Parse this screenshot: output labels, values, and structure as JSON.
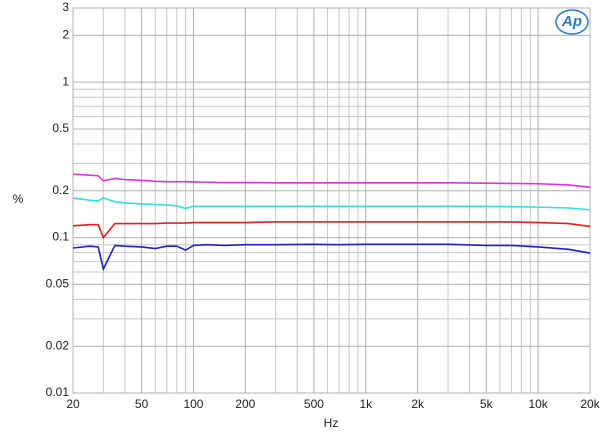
{
  "chart_data": {
    "type": "line",
    "logo": "Ap",
    "xlabel": "Hz",
    "ylabel": "%",
    "xscale": "log",
    "yscale": "log",
    "xlim": [
      20,
      20000
    ],
    "ylim": [
      0.01,
      3
    ],
    "xticks": [
      20,
      50,
      100,
      200,
      500,
      {
        "value": 1000,
        "label": "1k"
      },
      {
        "value": 2000,
        "label": "2k"
      },
      {
        "value": 5000,
        "label": "5k"
      },
      {
        "value": 10000,
        "label": "10k"
      },
      {
        "value": 20000,
        "label": "20k"
      }
    ],
    "yticks": [
      0.01,
      0.02,
      0.05,
      0.1,
      0.2,
      0.5,
      1,
      2,
      3
    ],
    "xgrid": [
      30,
      40,
      60,
      70,
      80,
      90,
      300,
      400,
      600,
      700,
      800,
      900,
      3000,
      4000,
      6000,
      7000,
      8000,
      9000
    ],
    "ygrid": [
      0.03,
      0.04,
      0.06,
      0.07,
      0.08,
      0.09,
      0.3,
      0.4,
      0.6,
      0.7,
      0.8,
      0.9
    ],
    "x": [
      20,
      25,
      28,
      30,
      35,
      40,
      50,
      60,
      70,
      80,
      90,
      100,
      120,
      150,
      200,
      300,
      500,
      700,
      1000,
      1500,
      2000,
      3000,
      5000,
      7000,
      10000,
      15000,
      20000
    ],
    "series": [
      {
        "name": "magenta",
        "color": "#e030e0",
        "values": [
          0.256,
          0.252,
          0.25,
          0.232,
          0.24,
          0.236,
          0.233,
          0.23,
          0.229,
          0.229,
          0.229,
          0.228,
          0.227,
          0.226,
          0.226,
          0.225,
          0.225,
          0.225,
          0.225,
          0.225,
          0.225,
          0.225,
          0.224,
          0.223,
          0.222,
          0.218,
          0.211
        ]
      },
      {
        "name": "cyan",
        "color": "#30e0e0",
        "values": [
          0.18,
          0.174,
          0.172,
          0.18,
          0.17,
          0.167,
          0.165,
          0.163,
          0.162,
          0.16,
          0.154,
          0.159,
          0.159,
          0.159,
          0.159,
          0.159,
          0.159,
          0.159,
          0.159,
          0.159,
          0.159,
          0.159,
          0.159,
          0.158,
          0.157,
          0.155,
          0.151
        ]
      },
      {
        "name": "red",
        "color": "#e02020",
        "values": [
          0.119,
          0.121,
          0.121,
          0.1,
          0.123,
          0.123,
          0.123,
          0.123,
          0.124,
          0.124,
          0.124,
          0.125,
          0.125,
          0.125,
          0.125,
          0.126,
          0.126,
          0.126,
          0.126,
          0.126,
          0.126,
          0.126,
          0.126,
          0.126,
          0.125,
          0.123,
          0.118
        ]
      },
      {
        "name": "blue",
        "color": "#2020c8",
        "values": [
          0.0857,
          0.088,
          0.087,
          0.0628,
          0.089,
          0.088,
          0.087,
          0.085,
          0.088,
          0.088,
          0.083,
          0.089,
          0.09,
          0.089,
          0.09,
          0.09,
          0.0905,
          0.09,
          0.0905,
          0.0905,
          0.0905,
          0.0905,
          0.089,
          0.089,
          0.087,
          0.084,
          0.0795
        ]
      }
    ]
  }
}
